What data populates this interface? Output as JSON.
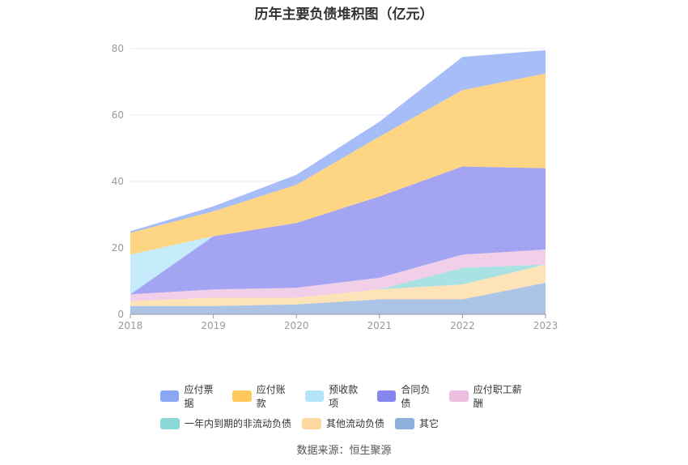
{
  "chart_data": {
    "type": "area",
    "title": "历年主要负债堆积图（亿元）",
    "source": "数据来源：恒生聚源",
    "x": [
      "2018",
      "2019",
      "2020",
      "2021",
      "2022",
      "2023"
    ],
    "ylim": [
      0,
      80
    ],
    "yticks": [
      0,
      20,
      40,
      60,
      80
    ],
    "stacked": true,
    "grid": true,
    "legend_position": "bottom",
    "series": [
      {
        "name": "其它",
        "color": "#8fb0dc",
        "values": [
          2.5,
          2.5,
          3.0,
          4.5,
          4.5,
          9.5
        ]
      },
      {
        "name": "其他流动负债",
        "color": "#fdd9a0",
        "values": [
          1.5,
          2.5,
          2.0,
          3.0,
          4.5,
          5.5
        ]
      },
      {
        "name": "一年内到期的非流动负债",
        "color": "#8bd8d8",
        "values": [
          0,
          0,
          0,
          0,
          5.0,
          0
        ]
      },
      {
        "name": "应付职工薪酬",
        "color": "#ecbfe0",
        "values": [
          2.0,
          2.5,
          3.0,
          3.5,
          4.0,
          4.5
        ]
      },
      {
        "name": "合同负债",
        "color": "#8485ee",
        "values": [
          0,
          16.0,
          19.5,
          24.5,
          26.5,
          24.5
        ]
      },
      {
        "name": "预收款项",
        "color": "#b3e4f8",
        "values": [
          12.0,
          0,
          0,
          0,
          0,
          0
        ]
      },
      {
        "name": "应付账款",
        "color": "#fec85a",
        "values": [
          6.5,
          7.5,
          11.5,
          18.0,
          23.0,
          28.5
        ]
      },
      {
        "name": "应付票据",
        "color": "#8aa7f5",
        "values": [
          0.5,
          1.5,
          3.0,
          4.5,
          10.0,
          7.0
        ]
      }
    ],
    "legend": [
      [
        "应付票据",
        "应付账款",
        "预收款项",
        "合同负债",
        "应付职工薪酬"
      ],
      [
        "一年内到期的非流动负债",
        "其他流动负债",
        "其它"
      ]
    ]
  }
}
